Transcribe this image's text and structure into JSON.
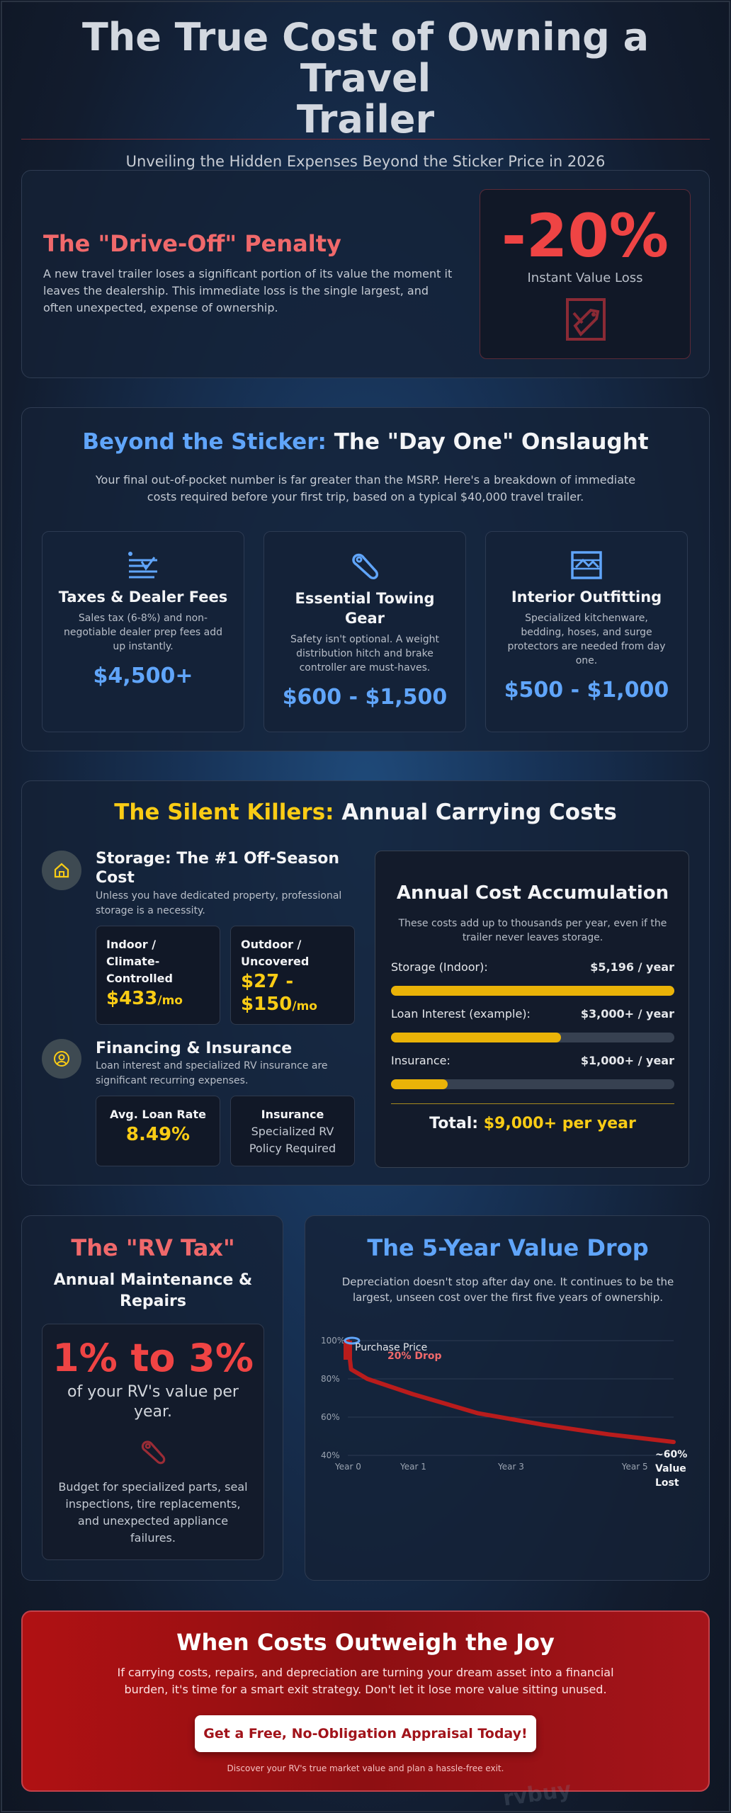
{
  "hero": {
    "title_line1": "The True Cost of Owning a Travel",
    "title_line2": "Trailer",
    "subtitle": "Unveiling the Hidden Expenses Beyond the Sticker Price in 2026"
  },
  "drive_off": {
    "heading": "The \"Drive-Off\" Penalty",
    "body": "A new travel trailer loses a significant portion of its value the moment it leaves the dealership. This immediate loss is the single largest, and often unexpected, expense of ownership.",
    "stat": "-20%",
    "stat_caption": "Instant Value Loss",
    "icon": "value-loss-tag-icon"
  },
  "day_one": {
    "heading_highlight": "Beyond the Sticker:",
    "heading_rest": " The \"Day One\" Onslaught",
    "intro": "Your final out-of-pocket number is far greater than the MSRP. Here's a breakdown of immediate costs required before your first trip, based on a typical $40,000 travel trailer.",
    "items": [
      {
        "icon": "document-fees-icon",
        "title": "Taxes & Dealer Fees",
        "desc": "Sales tax (6-8%) and non-negotiable dealer prep fees add up instantly.",
        "amount": "$4,500+"
      },
      {
        "icon": "tow-hitch-icon",
        "title": "Essential Towing Gear",
        "desc": "Safety isn't optional. A weight distribution hitch and brake controller are must-haves.",
        "amount": "$600 - $1,500"
      },
      {
        "icon": "interior-picture-icon",
        "title": "Interior Outfitting",
        "desc": "Specialized kitchenware, bedding, hoses, and surge protectors are needed from day one.",
        "amount": "$500 - $1,000"
      }
    ]
  },
  "silent": {
    "heading_highlight": "The Silent Killers:",
    "heading_rest": " Annual Carrying Costs",
    "storage": {
      "icon": "home-icon",
      "title": "Storage: The #1 Off-Season Cost",
      "desc": "Unless you have dedicated property, professional storage is a necessity.",
      "indoor_label": "Indoor / Climate-Controlled",
      "indoor_value": "$433",
      "indoor_unit": "/mo",
      "outdoor_label": "Outdoor / Uncovered",
      "outdoor_value": "$27 - $150",
      "outdoor_unit": "/mo"
    },
    "financing": {
      "icon": "user-circle-icon",
      "title": "Financing & Insurance",
      "desc": "Loan interest and specialized RV insurance are significant recurring expenses.",
      "loan_label": "Avg. Loan Rate",
      "loan_value": "8.49%",
      "ins_label": "Insurance",
      "ins_value": "Specialized RV Policy Required"
    },
    "accumulation": {
      "title": "Annual Cost Accumulation",
      "subtitle": "These costs add up to thousands per year, even if the trailer never leaves storage.",
      "rows": [
        {
          "label": "Storage (Indoor):",
          "value": "$5,196 / year",
          "fill": 1.0
        },
        {
          "label": "Loan Interest (example):",
          "value": "$3,000+ / year",
          "fill": 0.6
        },
        {
          "label": "Insurance:",
          "value": "$1,000+ / year",
          "fill": 0.2
        }
      ],
      "total_label": "Total:",
      "total_value": "$9,000+ per year",
      "accent_color": "#eab308"
    }
  },
  "rv_tax": {
    "heading": "The \"RV Tax\"",
    "subheading": "Annual Maintenance & Repairs",
    "pct": "1% to 3%",
    "pct_sub": "of your RV's value per year.",
    "icon": "wrench-icon",
    "desc": "Budget for specialized parts, seal inspections, tire replacements, and unexpected appliance failures."
  },
  "value_drop": {
    "heading": "The 5-Year Value Drop",
    "subtitle": "Depreciation doesn't stop after day one. It continues to be the largest, unseen cost over the first five years of ownership.",
    "purchase_label": "Purchase Price",
    "drop_label": "20% Drop",
    "end_label_1": "~60%",
    "end_label_2": "Value",
    "end_label_3": "Lost"
  },
  "chart_data": {
    "type": "line",
    "title": "",
    "xlabel": "",
    "ylabel": "",
    "y_ticks": [
      "100%",
      "80%",
      "60%",
      "40%"
    ],
    "x_ticks": [
      "Year 0",
      "Year 1",
      "Year 3",
      "Year 5"
    ],
    "ylim": [
      40,
      100
    ],
    "x": [
      0,
      0.05,
      0.3,
      1,
      2,
      3,
      4,
      5
    ],
    "series": [
      {
        "values": [
          100,
          85,
          80,
          72,
          62,
          56,
          51,
          47
        ]
      }
    ],
    "line_color": "#b91c1c",
    "grid": true
  },
  "cta": {
    "heading": "When Costs Outweigh the Joy",
    "body": "If carrying costs, repairs, and depreciation are turning your dream asset into a financial burden, it's time for a smart exit strategy. Don't let it lose more value sitting unused.",
    "button": "Get a Free, No-Obligation Appraisal Today!",
    "fine": "Discover your RV's true market value and plan a hassle-free exit."
  },
  "watermark": "rvbuy"
}
